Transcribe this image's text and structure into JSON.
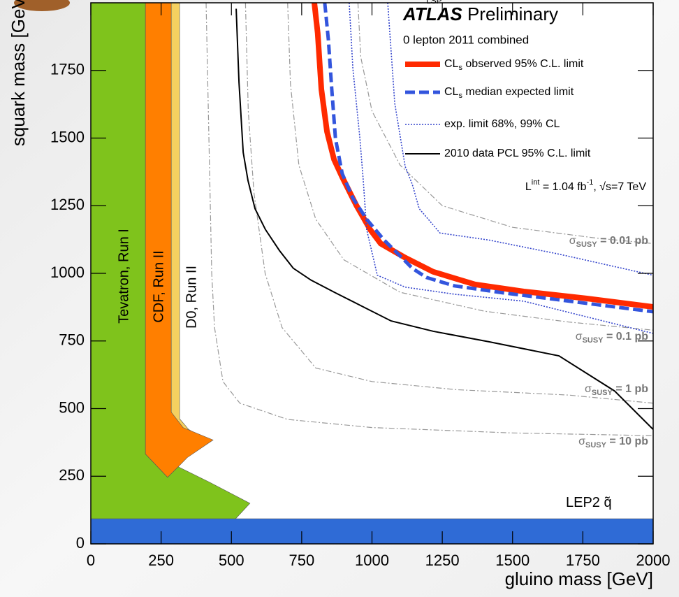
{
  "chart_data": {
    "type": "line",
    "title": [
      "ATLAS",
      " Preliminary"
    ],
    "subtitle": "0 lepton 2011 combined",
    "top_note": "LSP",
    "luminosity": [
      "L",
      "int",
      " = 1.04 fb",
      "-1",
      ", √s=7 TeV"
    ],
    "xlabel": "gluino mass [GeV]",
    "ylabel": "squark mass [GeV]",
    "xlim": [
      0,
      2000
    ],
    "ylim": [
      0,
      2000
    ],
    "xticks": [
      0,
      250,
      500,
      750,
      1000,
      1250,
      1500,
      1750,
      2000
    ],
    "yticks": [
      0,
      250,
      500,
      750,
      1000,
      1250,
      1500,
      1750
    ],
    "series": [
      {
        "name": [
          "CL",
          "s",
          " observed 95% C.L. limit"
        ],
        "color": "#ff2a00",
        "width": 8,
        "dash": "none",
        "x": [
          795,
          807,
          820,
          840,
          865,
          894,
          944,
          994,
          1031,
          1118,
          1217,
          1366,
          1540,
          1764,
          2000
        ],
        "y": [
          2000,
          1887,
          1680,
          1524,
          1421,
          1356,
          1252,
          1161,
          1110,
          1058,
          1006,
          959,
          933,
          907,
          876
        ]
      },
      {
        "name": [
          "CL",
          "s",
          " median expected limit"
        ],
        "color": "#3355dd",
        "width": 5,
        "dash": "14,6",
        "x": [
          832,
          845,
          857,
          870,
          894,
          932,
          981,
          1043,
          1106,
          1143,
          1193,
          1292,
          1466,
          1665,
          2000
        ],
        "y": [
          2000,
          1862,
          1680,
          1499,
          1369,
          1278,
          1200,
          1123,
          1058,
          1019,
          985,
          954,
          928,
          902,
          858
        ]
      },
      {
        "name": [
          "exp. limit 68%, 99% CL"
        ],
        "color": "#3344cc",
        "width": 1.6,
        "dash": "2,2",
        "x": [
          919,
          932,
          957,
          969,
          981,
          1019,
          1118,
          1292,
          1540,
          2000
        ],
        "y": [
          2000,
          1758,
          1499,
          1343,
          1162,
          993,
          949,
          923,
          897,
          778
        ]
      },
      {
        "color": "#3344cc",
        "width": 1.6,
        "dash": "2,2",
        "x": [
          1056,
          1081,
          1118,
          1143,
          1168,
          1242,
          1416,
          1665,
          2000
        ],
        "y": [
          2000,
          1628,
          1395,
          1330,
          1239,
          1149,
          1123,
          1071,
          993
        ]
      },
      {
        "name": [
          "2010 data PCL 95% C.L. limit"
        ],
        "color": "#000000",
        "width": 2,
        "dash": "none",
        "x": [
          517,
          527,
          542,
          559,
          584,
          621,
          671,
          720,
          783,
          870,
          969,
          1068,
          1217,
          1416,
          1665,
          1863,
          2000
        ],
        "y": [
          1978,
          1706,
          1447,
          1343,
          1239,
          1162,
          1084,
          1019,
          975,
          928,
          876,
          824,
          786,
          747,
          695,
          565,
          423
        ]
      }
    ],
    "contours": [
      {
        "label": [
          "σ",
          "SUSY",
          " = 0.01 pb"
        ],
        "color": "#999999",
        "x": [
          950,
          960,
          1000,
          1100,
          1250,
          1500,
          1800,
          2000
        ],
        "y": [
          2000,
          1800,
          1600,
          1400,
          1250,
          1170,
          1130,
          1110
        ]
      },
      {
        "label": [
          "σ",
          "SUSY",
          " = 0.1 pb"
        ],
        "color": "#999999",
        "x": [
          700,
          710,
          740,
          800,
          900,
          1100,
          1400,
          1700,
          2000
        ],
        "y": [
          2000,
          1700,
          1400,
          1200,
          1050,
          930,
          860,
          820,
          790
        ]
      },
      {
        "label": [
          "σ",
          "SUSY",
          " = 1 pb"
        ],
        "color": "#999999",
        "x": [
          550,
          560,
          580,
          620,
          680,
          800,
          1000,
          1300,
          1700,
          2000
        ],
        "y": [
          2000,
          1600,
          1300,
          1000,
          800,
          650,
          600,
          570,
          550,
          520
        ]
      },
      {
        "label": [
          "σ",
          "SUSY",
          " = 10 pb"
        ],
        "color": "#999999",
        "x": [
          410,
          420,
          430,
          440,
          470,
          530,
          700,
          1000,
          1500,
          2000
        ],
        "y": [
          2000,
          1500,
          1000,
          800,
          600,
          520,
          460,
          430,
          410,
          400
        ]
      }
    ],
    "regions": [
      {
        "name": "D0, Run II",
        "color": "#f5d060",
        "x": [
          286,
          316,
          316,
          348,
          410,
          343,
          286
        ],
        "y": [
          2000,
          2000,
          462,
          423,
          384,
          350,
          487
        ]
      },
      {
        "name": "CDF, Run II",
        "color": "#ff7f00",
        "x": [
          194,
          286,
          286,
          328,
          435,
          343,
          311,
          273,
          194
        ],
        "y": [
          2000,
          2000,
          487,
          430,
          384,
          319,
          285,
          246,
          332
        ]
      },
      {
        "name": "Tevatron, Run I",
        "color": "#7fc31c",
        "x": [
          0,
          0,
          194,
          194,
          273,
          311,
          422,
          566,
          509
        ],
        "y": [
          86,
          2000,
          2000,
          332,
          246,
          285,
          228,
          150,
          86
        ]
      },
      {
        "name": [
          "LEP2  ",
          "q̃"
        ],
        "color": "#2f6bd6",
        "x": [
          0,
          0,
          2000,
          2000
        ],
        "y": [
          0,
          93,
          93,
          0
        ]
      }
    ]
  }
}
